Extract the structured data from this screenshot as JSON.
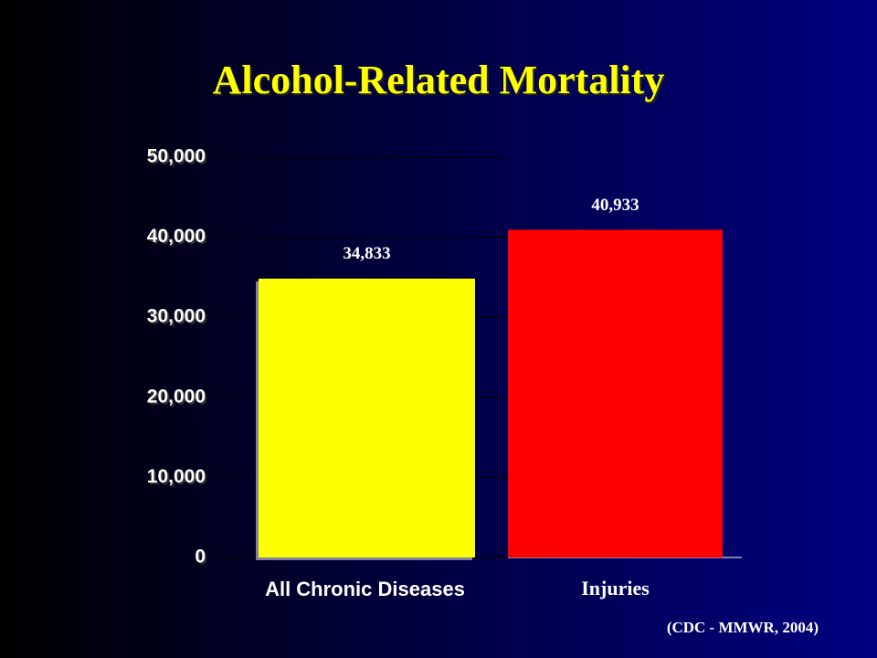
{
  "chart_data": {
    "type": "bar",
    "title": "Alcohol-Related Mortality",
    "categories": [
      "All Chronic Diseases",
      "Injuries"
    ],
    "values": [
      34833,
      40933
    ],
    "value_labels": [
      "34,833",
      "40,933"
    ],
    "colors": [
      "#ffff00",
      "#ff0000"
    ],
    "ylim": [
      0,
      50000
    ],
    "yticks": [
      0,
      {
        "value": 10000,
        "label": "10,000"
      },
      {
        "value": 20000,
        "label": "20,000"
      },
      {
        "value": 30000,
        "label": "30,000"
      },
      {
        "value": 40000,
        "label": "40,000"
      },
      {
        "value": 50000,
        "label": "50,000"
      }
    ],
    "grid": true,
    "source": "(CDC - MMWR, 2004)"
  }
}
